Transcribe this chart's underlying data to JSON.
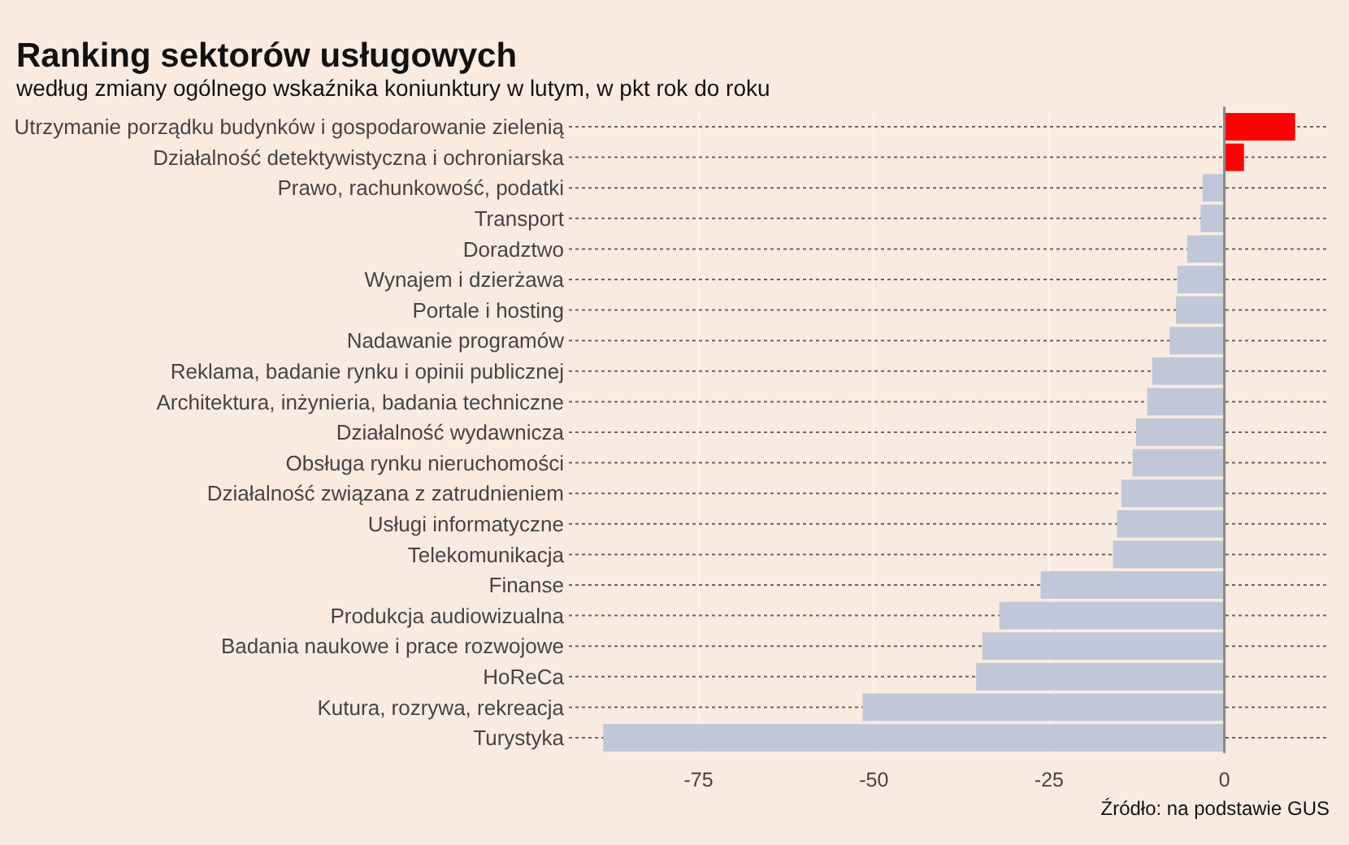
{
  "chart_data": {
    "type": "bar",
    "orientation": "horizontal",
    "title": "Ranking sektorów usługowych",
    "subtitle": "według zmiany ogólnego wskaźnika koniunktury w lutym, w pkt rok do roku",
    "categories": [
      "Utrzymanie porządku budynków i gospodarowanie zielenią",
      "Działalność detektywistyczna i ochroniarska",
      "Prawo, rachunkowość, podatki",
      "Transport",
      "Doradztwo",
      "Wynajem i dzierżawa",
      "Portale i hosting",
      "Nadawanie programów",
      "Reklama, badanie rynku i opinii publicznej",
      "Architektura, inżynieria, badania techniczne",
      "Działalność wydawnicza",
      "Obsługa rynku nieruchomości",
      "Działalność związana z zatrudnieniem",
      "Usługi informatyczne",
      "Telekomunikacja",
      "Finanse",
      "Produkcja audiowizualna",
      "Badania naukowe i prace rozwojowe",
      "HoReCa",
      "Kutura, rozrywa, rekreacja",
      "Turystyka"
    ],
    "values": [
      10.1,
      2.8,
      -3.1,
      -3.4,
      -5.3,
      -6.7,
      -6.9,
      -7.8,
      -10.3,
      -11.0,
      -12.6,
      -13.1,
      -14.7,
      -15.3,
      -15.9,
      -26.2,
      -32.1,
      -34.5,
      -35.4,
      -51.6,
      -88.6
    ],
    "colors": [
      "#ff0000",
      "#ff0000",
      "#c0c7d8",
      "#c0c7d8",
      "#c0c7d8",
      "#c0c7d8",
      "#c0c7d8",
      "#c0c7d8",
      "#c0c7d8",
      "#c0c7d8",
      "#c0c7d8",
      "#c0c7d8",
      "#c0c7d8",
      "#c0c7d8",
      "#c0c7d8",
      "#c0c7d8",
      "#c0c7d8",
      "#c0c7d8",
      "#c0c7d8",
      "#c0c7d8",
      "#c0c7d8"
    ],
    "xlim": [
      -93.5,
      15
    ],
    "xticks": [
      -75,
      -50,
      -25,
      0
    ],
    "grid": true,
    "annotations": [
      "Źródło: na podstawie GUS"
    ]
  }
}
